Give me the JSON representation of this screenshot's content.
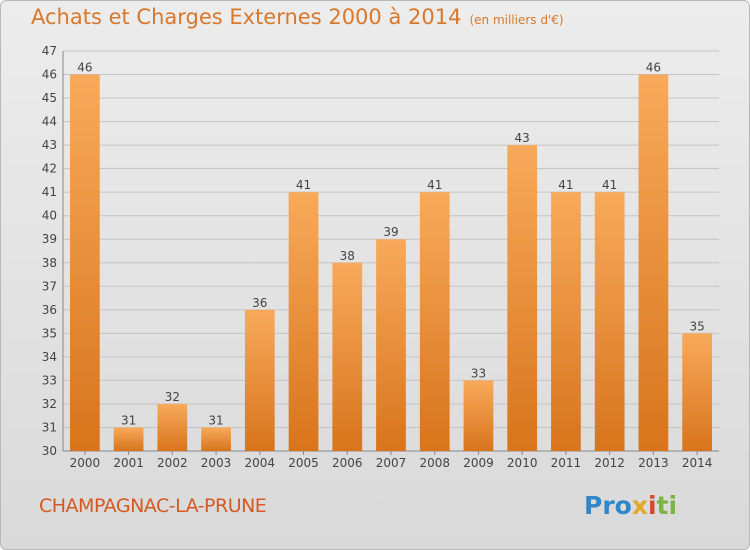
{
  "header": {
    "title": "Achats et Charges Externes 2000 à 2014",
    "subtitle": "(en milliers d'€)"
  },
  "footer": {
    "commune": "CHAMPAGNAC-LA-PRUNE",
    "brand": [
      "Pro",
      "x",
      "i",
      "ti"
    ]
  },
  "colors": {
    "title": "#d8782a",
    "bar_top": "#f7aa5a",
    "bar_bottom": "#d8741c",
    "commune": "#d45a22"
  },
  "chart_data": {
    "type": "bar",
    "title": "Achats et Charges Externes 2000 à 2014",
    "subtitle": "(en milliers d'€)",
    "categories": [
      "2000",
      "2001",
      "2002",
      "2003",
      "2004",
      "2005",
      "2006",
      "2007",
      "2008",
      "2009",
      "2010",
      "2011",
      "2012",
      "2013",
      "2014"
    ],
    "values": [
      46,
      31,
      32,
      31,
      36,
      41,
      38,
      39,
      41,
      33,
      43,
      41,
      41,
      46,
      35
    ],
    "ylim": [
      30,
      47
    ],
    "yticks": [
      30,
      31,
      32,
      33,
      34,
      35,
      36,
      37,
      38,
      39,
      40,
      41,
      42,
      43,
      44,
      45,
      46,
      47
    ],
    "grid": true,
    "xlabel": "",
    "ylabel": ""
  }
}
